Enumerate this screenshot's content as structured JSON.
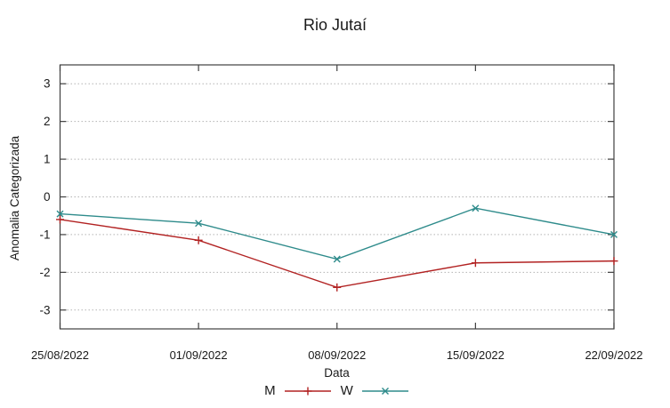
{
  "title": "Rio Jutaí",
  "chart_data": {
    "type": "line",
    "title": "Rio Jutaí",
    "xlabel": "Data",
    "ylabel": "Anomalia Categorizada",
    "categories": [
      "25/08/2022",
      "01/09/2022",
      "08/09/2022",
      "15/09/2022",
      "22/09/2022"
    ],
    "series": [
      {
        "name": "M",
        "marker": "plus",
        "color": "#b22222",
        "values": [
          -0.6,
          -1.15,
          -2.4,
          -1.75,
          -1.7
        ]
      },
      {
        "name": "W",
        "marker": "cross",
        "color": "#2e8b8b",
        "values": [
          -0.45,
          -0.7,
          -1.65,
          -0.3,
          -1.0
        ]
      }
    ],
    "y_ticks": [
      3,
      2,
      1,
      0,
      -1,
      -2,
      -3
    ],
    "ylim": [
      -3.5,
      3.5
    ],
    "grid": "horizontal-dotted",
    "legend_position": "bottom-center"
  },
  "colors": {
    "background": "#ffffff",
    "border": "#404040",
    "grid": "#b3b3b3",
    "text": "#1a1a1a",
    "series_m": "#b22222",
    "series_w": "#2e8b8b"
  }
}
